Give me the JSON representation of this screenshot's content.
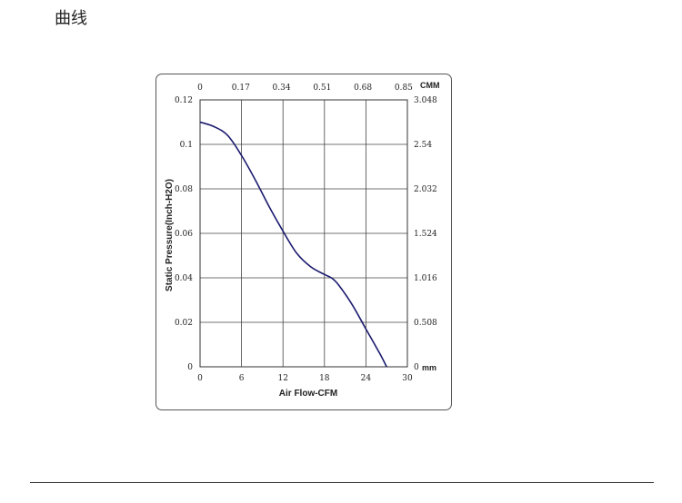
{
  "page": {
    "heading": "曲线"
  },
  "chart_data": {
    "type": "line",
    "xlabel": "Air Flow-CFM",
    "ylabel": "Static Pressure(Inch-H2O)",
    "xlim": [
      0,
      30
    ],
    "ylim": [
      0,
      0.12
    ],
    "x_ticks": [
      "0",
      "6",
      "12",
      "18",
      "24",
      "30"
    ],
    "x_tick_values": [
      0,
      6,
      12,
      18,
      24,
      30
    ],
    "y_ticks": [
      "0",
      "0.02",
      "0.04",
      "0.06",
      "0.08",
      "0.1",
      "0.12"
    ],
    "y_tick_values": [
      0,
      0.02,
      0.04,
      0.06,
      0.08,
      0.1,
      0.12
    ],
    "top_axis": {
      "unit": "CMM",
      "ticks": [
        "0",
        "0.17",
        "0.34",
        "0.51",
        "0.68",
        "0.85"
      ]
    },
    "right_axis": {
      "unit": "mm",
      "ticks": [
        "0",
        "0.508",
        "1.016",
        "1.524",
        "2.032",
        "2.54",
        "3.048"
      ]
    },
    "grid": true,
    "line_color": "#1a1a6e",
    "series": [
      {
        "x": [
          0,
          2,
          4,
          6,
          8,
          10,
          12,
          14,
          16,
          18,
          19,
          20,
          22,
          24,
          26,
          27
        ],
        "y": [
          0.11,
          0.108,
          0.104,
          0.095,
          0.084,
          0.072,
          0.061,
          0.051,
          0.045,
          0.0415,
          0.04,
          0.037,
          0.028,
          0.017,
          0.006,
          0
        ]
      }
    ]
  }
}
